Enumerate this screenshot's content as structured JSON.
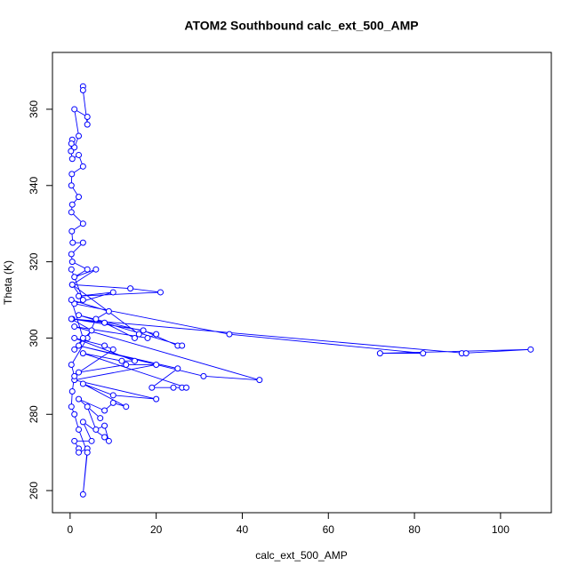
{
  "chart_data": {
    "type": "line",
    "title": "ATOM2 Southbound calc_ext_500_AMP",
    "x_label": "calc_ext_500_AMP",
    "y_label": "Theta (K)",
    "xlim": [
      -4.1,
      111.8
    ],
    "ylim": [
      254.2,
      374.9
    ],
    "xticks": [
      0,
      20,
      40,
      60,
      80,
      100
    ],
    "yticks": [
      260,
      280,
      300,
      320,
      340,
      360
    ],
    "markers": true,
    "series": [
      {
        "color": "#0000ff",
        "x": [
          3,
          3,
          4,
          4,
          1,
          2,
          1,
          0.5,
          0.3,
          0.2,
          0.5,
          2,
          3,
          0.4,
          0.3,
          2,
          0.5,
          0.3,
          3,
          0.4,
          0.6,
          3,
          0.3,
          0.5,
          4,
          1,
          6,
          0.5,
          14,
          21,
          2,
          10,
          1,
          37,
          82,
          72,
          107,
          91,
          92,
          0.5,
          17,
          25,
          26,
          2,
          20,
          18,
          1,
          44,
          31,
          2,
          25,
          19,
          24,
          26,
          27,
          3,
          12,
          15,
          1,
          8,
          10,
          2,
          13,
          20,
          1,
          20,
          10,
          3,
          13,
          10,
          8,
          2,
          7,
          4,
          6,
          8,
          9,
          8,
          3,
          5,
          1,
          2,
          2,
          4,
          3,
          4,
          2,
          1,
          0.3,
          0.5,
          1,
          0.3,
          4,
          6,
          9,
          0.3,
          3,
          1,
          5,
          0.3,
          8,
          15,
          16,
          0.5,
          3,
          0.3
        ],
        "values": [
          366,
          365,
          356,
          358,
          360,
          353,
          350,
          352,
          351,
          349,
          347,
          348,
          345,
          343,
          340,
          337,
          335,
          333,
          330,
          328,
          325,
          325,
          322,
          320,
          318,
          316,
          318,
          314,
          313,
          312,
          311,
          312,
          309,
          301,
          296,
          296,
          297,
          296,
          296,
          305,
          302,
          298,
          298,
          306,
          301,
          300,
          303,
          289,
          290,
          298,
          292,
          287,
          287,
          287,
          287,
          296,
          294,
          294,
          300,
          298,
          297,
          291,
          293,
          293,
          289,
          284,
          285,
          288,
          282,
          283,
          281,
          284,
          279,
          282,
          276,
          277,
          273,
          274,
          278,
          273,
          273,
          271,
          270,
          271,
          259,
          270,
          276,
          280,
          282,
          286,
          290,
          293,
          300,
          305,
          307,
          310,
          300,
          297,
          302,
          305,
          304,
          300,
          301,
          314,
          310,
          318
        ]
      }
    ]
  }
}
